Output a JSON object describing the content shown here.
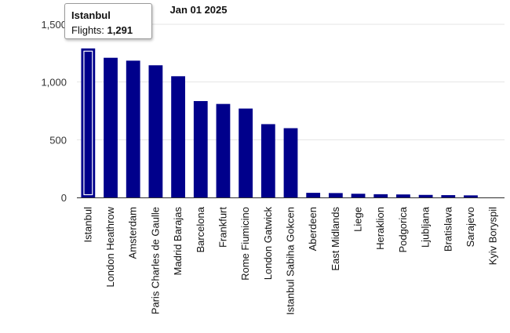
{
  "chart_data": {
    "type": "bar",
    "title": "Jan 01 2025",
    "xlabel": "",
    "ylabel": "",
    "ylim": [
      0,
      1500
    ],
    "yticks": [
      0,
      500,
      1000,
      1500
    ],
    "grid": true,
    "bar_color": "#00008b",
    "highlight_color": "#ffffff",
    "categories": [
      "Istanbul",
      "London Heathrow",
      "Amsterdam",
      "Paris Charles de Gaulle",
      "Madrid Barajas",
      "Barcelona",
      "Frankfurt",
      "Rome Fiumicino",
      "London Gatwick",
      "Istanbul Sabiha Gokcen",
      "Aberdeen",
      "East Midlands",
      "Liege",
      "Heraklion",
      "Podgorica",
      "Ljubljana",
      "Bratislava",
      "Sarajevo",
      "Kyiv Boryspil"
    ],
    "values": [
      1291,
      1210,
      1185,
      1145,
      1050,
      835,
      810,
      770,
      635,
      600,
      40,
      38,
      32,
      28,
      26,
      22,
      20,
      18,
      0
    ],
    "highlighted_index": 0
  },
  "tooltip": {
    "title": "Istanbul",
    "label": "Flights: ",
    "value": "1,291"
  }
}
